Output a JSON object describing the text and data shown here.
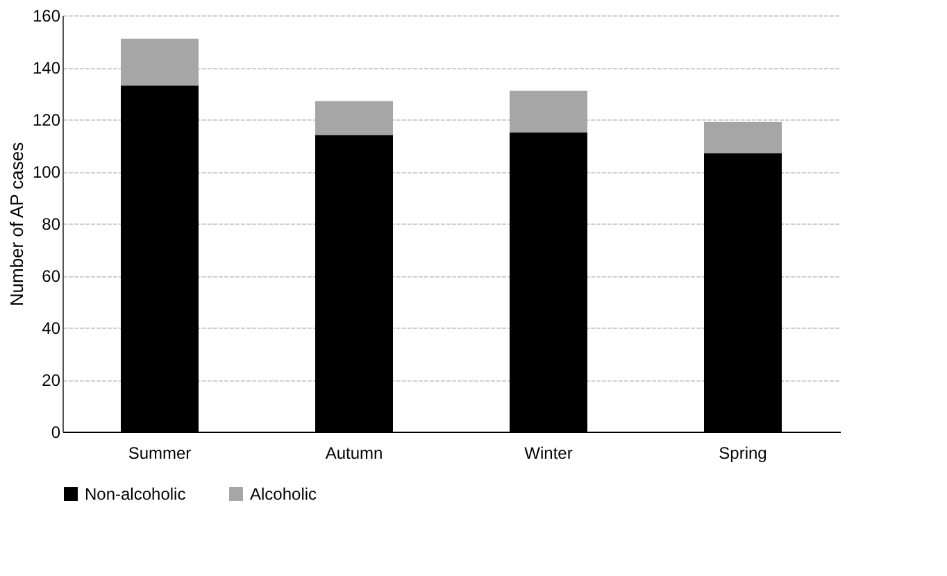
{
  "chart_data": {
    "type": "bar",
    "stacked": true,
    "ylabel": "Number of AP cases",
    "categories": [
      "Summer",
      "Autumn",
      "Winter",
      "Spring"
    ],
    "series": [
      {
        "name": "Non-alcoholic",
        "color": "#000000",
        "values": [
          133,
          114,
          115,
          107
        ]
      },
      {
        "name": "Alcoholic",
        "color": "#a6a6a6",
        "values": [
          18,
          13,
          16,
          12
        ]
      }
    ],
    "ylim": [
      0,
      160
    ],
    "yticks": [
      0,
      20,
      40,
      60,
      80,
      100,
      120,
      140,
      160
    ],
    "grid": "y",
    "legend": "bottom"
  }
}
